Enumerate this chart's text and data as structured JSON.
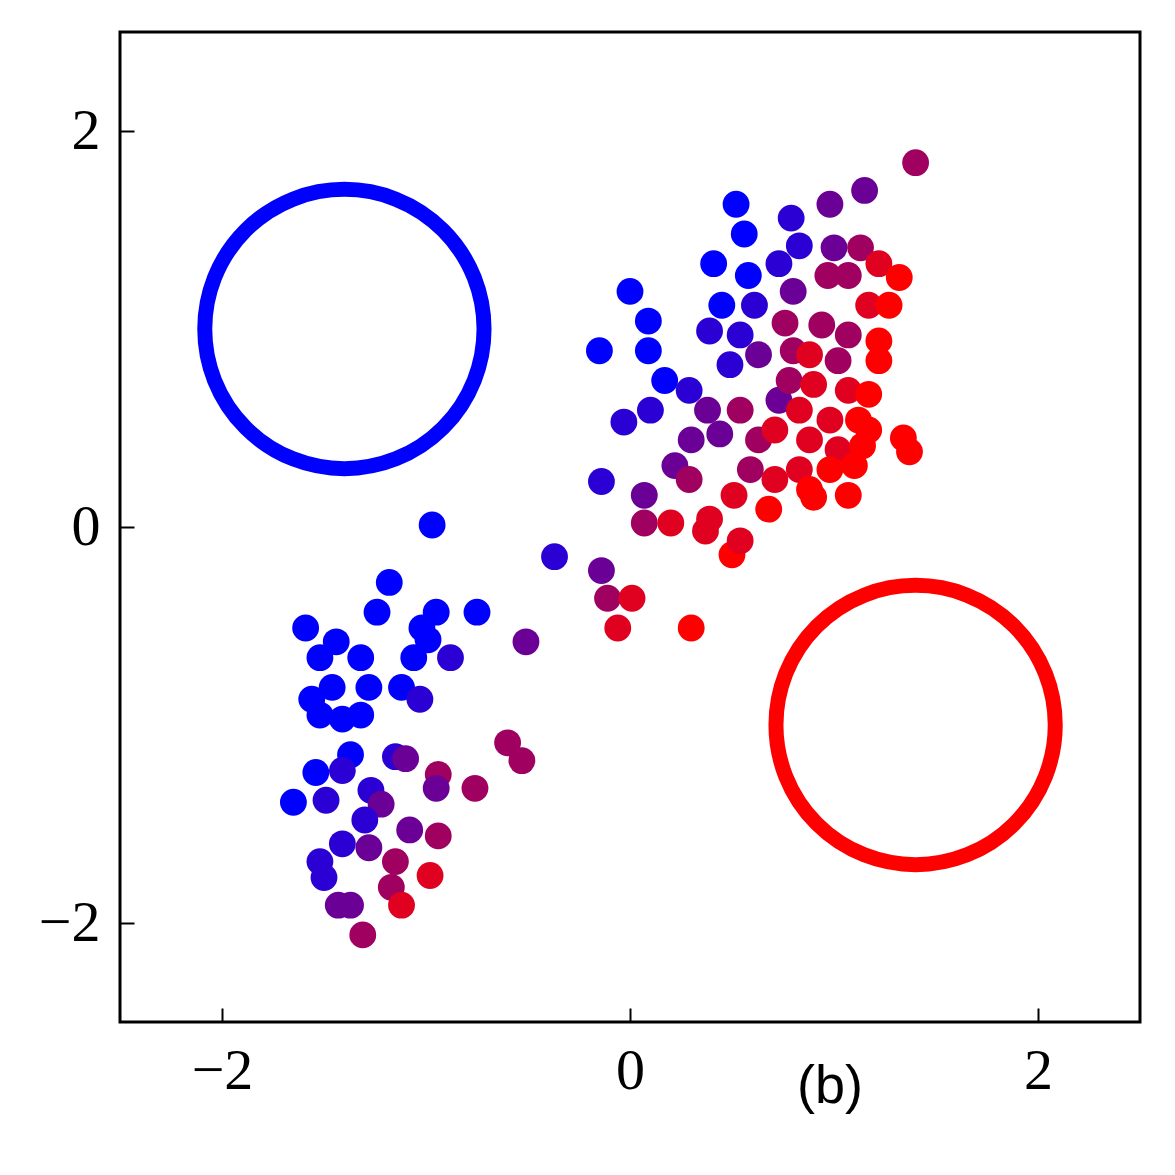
{
  "chart_data": {
    "type": "scatter",
    "marker": "circle",
    "grid": false,
    "xlim": [
      -2.5,
      2.5
    ],
    "ylim": [
      -2.5,
      2.5
    ],
    "xticks": [
      {
        "value": -2,
        "label": "−2"
      },
      0,
      2
    ],
    "yticks": [
      {
        "value": -2,
        "label": "−2"
      },
      0,
      2
    ],
    "annotations": [
      "(b)"
    ],
    "series": [
      {
        "x": [
          -0.97,
          -1.18,
          -1.24,
          -0.95,
          -0.75,
          -1.59,
          -1.44,
          -1.02,
          -0.99,
          -1.52,
          -1.32,
          -1.06,
          -0.88,
          -0.51,
          -1.56,
          -1.46,
          -1.28,
          -1.12,
          -1.03,
          -1.41,
          -1.32,
          -1.52,
          -1.37,
          -1.15,
          -1.1,
          -1.54,
          -1.41,
          -0.94,
          -1.65,
          -1.49,
          -1.27,
          -1.22,
          -0.95,
          -0.76,
          -0.6,
          -0.53,
          -1.08,
          -0.94,
          -1.3,
          -1.41,
          -1.28,
          -1.52,
          -1.15,
          -0.98,
          -1.5,
          -1.17,
          -1.43,
          -1.37,
          -1.12,
          -1.31,
          -0.37,
          -0.14,
          -0.11,
          0.01,
          -0.06,
          0.3,
          -0.14,
          -0.03,
          -0.15,
          0.0,
          0.09,
          0.09,
          0.07,
          0.07,
          0.2,
          0.1,
          0.17,
          0.22,
          0.29,
          0.3,
          0.29,
          0.39,
          0.41,
          0.52,
          0.56,
          0.58,
          0.45,
          0.61,
          0.54,
          0.49,
          0.63,
          0.38,
          0.44,
          0.54,
          0.37,
          0.5,
          0.54,
          0.39,
          0.51,
          0.59,
          0.63,
          0.71,
          0.73,
          0.78,
          0.8,
          0.76,
          0.73,
          0.79,
          0.83,
          0.8,
          0.98,
          1.15,
          1.4,
          1.0,
          1.13,
          0.97,
          1.07,
          1.22,
          1.32,
          1.17,
          1.27,
          0.94,
          1.07,
          1.22,
          0.88,
          1.02,
          1.22,
          0.9,
          1.07,
          1.17,
          0.83,
          0.98,
          1.12,
          1.17,
          0.88,
          1.02,
          1.14,
          0.83,
          0.98,
          1.1,
          1.34,
          1.37,
          0.71,
          0.88,
          1.07,
          0.68,
          0.9
        ],
        "values": [
          0.01,
          -0.28,
          -0.43,
          -0.43,
          -0.43,
          -0.51,
          -0.58,
          -0.51,
          -0.57,
          -0.66,
          -0.66,
          -0.66,
          -0.66,
          -0.58,
          -0.87,
          -0.81,
          -0.81,
          -0.81,
          -0.87,
          -0.97,
          -0.95,
          -0.95,
          -1.15,
          -1.16,
          -1.17,
          -1.24,
          -1.23,
          -1.25,
          -1.39,
          -1.38,
          -1.33,
          -1.4,
          -1.32,
          -1.32,
          -1.09,
          -1.18,
          -1.53,
          -1.56,
          -1.48,
          -1.6,
          -1.62,
          -1.69,
          -1.69,
          -1.76,
          -1.77,
          -1.82,
          -1.91,
          -1.91,
          -1.91,
          -2.06,
          -0.15,
          -0.22,
          -0.36,
          -0.36,
          -0.51,
          -0.51,
          0.23,
          0.53,
          0.89,
          1.19,
          1.04,
          0.89,
          0.16,
          0.02,
          0.02,
          0.59,
          0.74,
          0.31,
          0.24,
          0.44,
          0.69,
          0.99,
          1.33,
          1.63,
          1.48,
          1.27,
          1.12,
          1.12,
          0.97,
          0.82,
          0.87,
          0.59,
          0.47,
          0.59,
          -0.02,
          -0.14,
          -0.07,
          0.04,
          0.16,
          0.29,
          0.44,
          0.49,
          0.64,
          0.74,
          0.89,
          1.03,
          1.33,
          1.56,
          1.42,
          1.19,
          1.63,
          1.7,
          1.84,
          1.41,
          1.41,
          1.27,
          1.27,
          1.33,
          1.26,
          1.12,
          1.12,
          1.02,
          0.97,
          0.94,
          0.87,
          0.84,
          0.84,
          0.72,
          0.69,
          0.67,
          0.59,
          0.54,
          0.54,
          0.49,
          0.44,
          0.39,
          0.41,
          0.29,
          0.29,
          0.31,
          0.45,
          0.38,
          0.24,
          0.19,
          0.16,
          0.09,
          0.15
        ],
        "colors": [
          "#0000ff",
          "#0000ff",
          "#0000ff",
          "#0000ff",
          "#0000ff",
          "#0000ff",
          "#0000ff",
          "#0000ff",
          "#0000ff",
          "#0000ff",
          "#0000ff",
          "#0000ff",
          "#2a00d5",
          "#6a0095",
          "#0000ff",
          "#0000ff",
          "#0000ff",
          "#0000ff",
          "#2a00d5",
          "#0000ff",
          "#0000ff",
          "#0000ff",
          "#0000ff",
          "#2a00d5",
          "#6a0095",
          "#0000ff",
          "#2a00d5",
          "#a0005f",
          "#0000ff",
          "#2a00d5",
          "#2a00d5",
          "#6a0095",
          "#6a0095",
          "#a0005f",
          "#a0005f",
          "#a0005f",
          "#6a0095",
          "#a0005f",
          "#2a00d5",
          "#2a00d5",
          "#6a0095",
          "#2a00d5",
          "#a0005f",
          "#e0001f",
          "#2a00d5",
          "#a0005f",
          "#6a0095",
          "#6a0095",
          "#e0001f",
          "#a0005f",
          "#2a00d5",
          "#6a0095",
          "#a0005f",
          "#e0001f",
          "#e0001f",
          "#ff0000",
          "#2a00d5",
          "#2a00d5",
          "#0000ff",
          "#0000ff",
          "#0000ff",
          "#0000ff",
          "#6a0095",
          "#a0005f",
          "#e0001f",
          "#2a00d5",
          "#0000ff",
          "#6a0095",
          "#a0005f",
          "#6a0095",
          "#2a00d5",
          "#2a00d5",
          "#0000ff",
          "#0000ff",
          "#0000ff",
          "#0000ff",
          "#0000ff",
          "#2a00d5",
          "#2a00d5",
          "#2a00d5",
          "#6a0095",
          "#6a0095",
          "#6a0095",
          "#a0005f",
          "#e0001f",
          "#ff0000",
          "#e0001f",
          "#e0001f",
          "#e0001f",
          "#a0005f",
          "#a0005f",
          "#e0001f",
          "#6a0095",
          "#a0005f",
          "#a0005f",
          "#a0005f",
          "#2a00d5",
          "#2a00d5",
          "#2a00d5",
          "#6a0095",
          "#6a0095",
          "#6a0095",
          "#a0005f",
          "#6a0095",
          "#a0005f",
          "#a0005f",
          "#a0005f",
          "#e0001f",
          "#ff0000",
          "#e0001f",
          "#ff0000",
          "#a0005f",
          "#a0005f",
          "#ff0000",
          "#e0001f",
          "#a0005f",
          "#ff0000",
          "#e0001f",
          "#e0001f",
          "#ff0000",
          "#e0001f",
          "#e0001f",
          "#ff0000",
          "#ff0000",
          "#e0001f",
          "#e0001f",
          "#ff0000",
          "#e0001f",
          "#ff0000",
          "#ff0000",
          "#ff0000",
          "#ff0000",
          "#e0001f",
          "#ff0000",
          "#ff0000",
          "#ff0000",
          "#ff0000"
        ]
      },
      {
        "type": "bubble",
        "x": [
          -1.4,
          1.4
        ],
        "values": [
          1.0,
          -1.0
        ],
        "sizes": [
          1,
          1
        ],
        "colors": [
          "#0000ff",
          "#ff0000"
        ]
      }
    ]
  }
}
